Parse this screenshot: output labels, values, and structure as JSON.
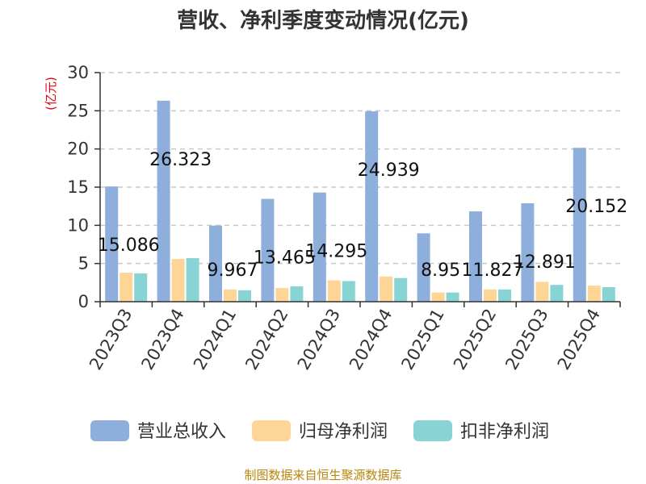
{
  "chart_data": {
    "type": "bar",
    "title": "营收、净利季度变动情况(亿元)",
    "unit_label": "(亿元)",
    "categories": [
      "2023Q3",
      "2023Q4",
      "2024Q1",
      "2024Q2",
      "2024Q3",
      "2024Q4",
      "2025Q1",
      "2025Q2",
      "2025Q3",
      "2025Q4"
    ],
    "series": [
      {
        "name": "营业总收入",
        "color": "#8eaedb",
        "values": [
          15.086,
          26.323,
          9.967,
          13.465,
          14.295,
          24.939,
          8.95,
          11.827,
          12.891,
          20.152
        ]
      },
      {
        "name": "归母净利润",
        "color": "#fdd697",
        "values": [
          3.8,
          5.6,
          1.6,
          1.8,
          2.8,
          3.3,
          1.2,
          1.6,
          2.6,
          2.1
        ]
      },
      {
        "name": "扣非净利润",
        "color": "#88d4d4",
        "values": [
          3.7,
          5.7,
          1.5,
          2.0,
          2.7,
          3.1,
          1.2,
          1.6,
          2.2,
          1.9
        ]
      }
    ],
    "data_labels": [
      "15.086",
      "26.323",
      "9.967",
      "13.465",
      "14.295",
      "24.939",
      "8.95",
      "11.827",
      "12.891",
      "20.152"
    ],
    "yticks": [
      "0",
      "5",
      "10",
      "15",
      "20",
      "25",
      "30"
    ],
    "ylim": [
      0,
      30
    ],
    "grid": true,
    "legend_position": "bottom"
  },
  "source_text": "制图数据来自恒生聚源数据库"
}
